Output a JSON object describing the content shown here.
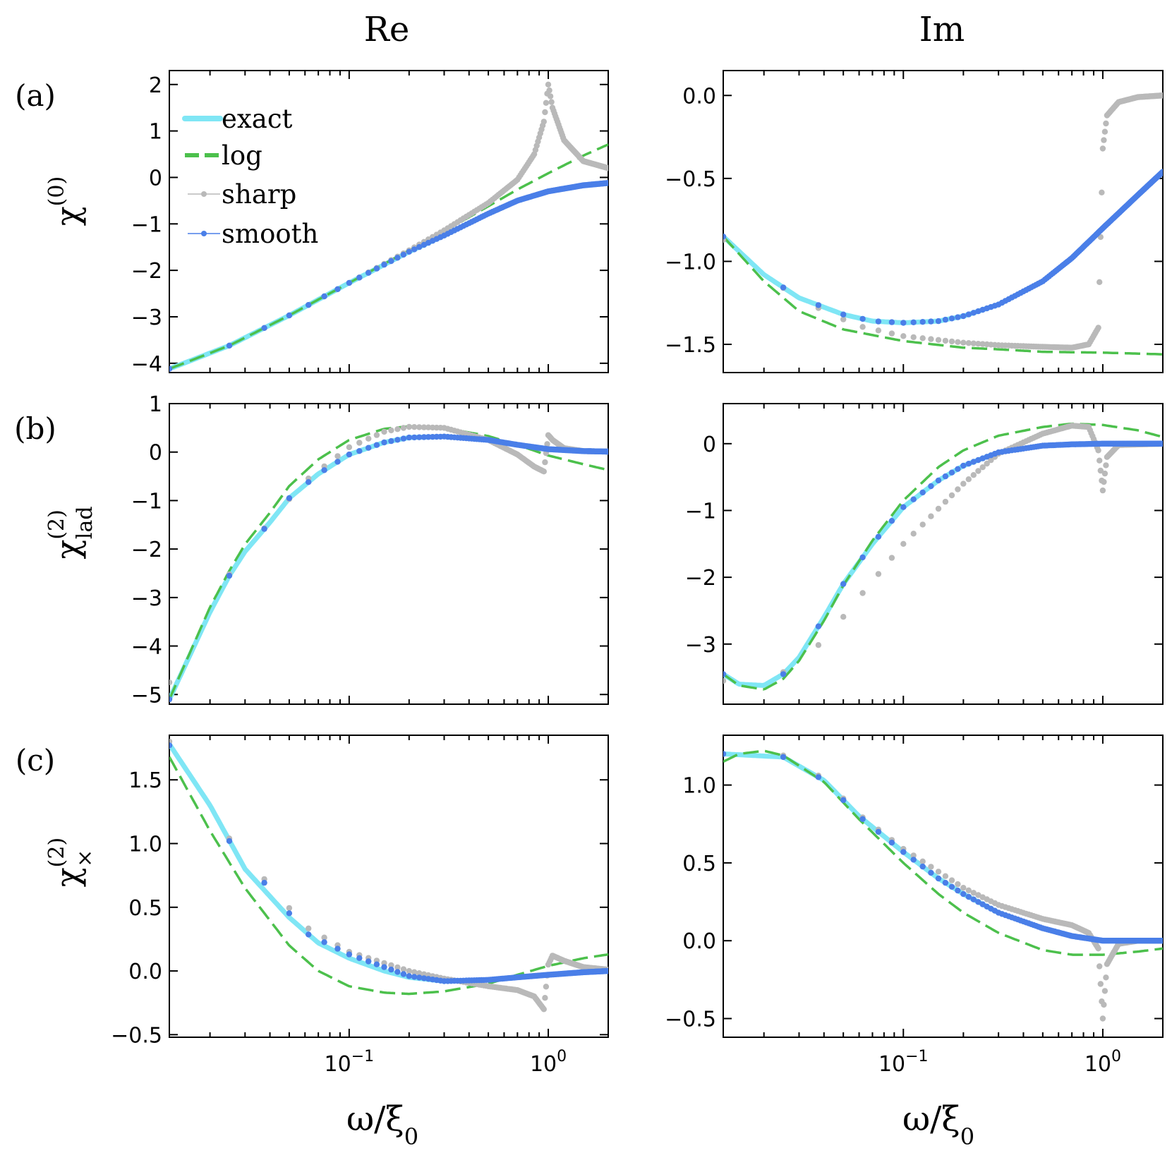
{
  "columns": [
    "Re",
    "Im"
  ],
  "row_labels": [
    "(a)",
    "(b)",
    "(c)"
  ],
  "ylabels": [
    {
      "base": "χ",
      "sup": "(0)",
      "sub": ""
    },
    {
      "base": "χ",
      "sup": "(2)",
      "sub": "lad"
    },
    {
      "base": "χ",
      "sup": "(2)",
      "sub": "×"
    }
  ],
  "xlabel": {
    "main": "ω/ξ",
    "sub": "0"
  },
  "legend": [
    "exact",
    "log",
    "sharp",
    "smooth"
  ],
  "colors": {
    "exact": "#7fe6f5",
    "log": "#4cc04c",
    "sharp": "#b9b9b9",
    "smooth": "#4a7fe8"
  },
  "chart_data": [
    {
      "id": "a-re",
      "type": "line",
      "x_scale": "log",
      "xlim": [
        0.0125,
        2.0
      ],
      "ylim": [
        -4.2,
        2.3
      ],
      "yticks": [
        -4,
        -3,
        -2,
        -1,
        0,
        1,
        2
      ],
      "ytick_labels": [
        "−4",
        "−3",
        "−2",
        "−1",
        "0",
        "1",
        "2"
      ],
      "xticks": [
        0.1,
        1.0
      ],
      "xtick_labels": [
        "10^-1",
        "10^0"
      ],
      "series": [
        {
          "name": "exact",
          "x": [
            0.0125,
            0.025,
            0.05,
            0.1,
            0.2,
            0.3,
            0.5,
            0.7,
            1.0,
            1.5,
            2.0
          ],
          "y": [
            -4.12,
            -3.62,
            -2.97,
            -2.27,
            -1.6,
            -1.25,
            -0.78,
            -0.5,
            -0.3,
            -0.17,
            -0.12
          ]
        },
        {
          "name": "log",
          "x": [
            0.0125,
            0.025,
            0.05,
            0.1,
            0.2,
            0.3,
            0.5,
            0.7,
            1.0,
            1.5,
            2.0
          ],
          "y": [
            -4.12,
            -3.62,
            -2.97,
            -2.27,
            -1.57,
            -1.16,
            -0.62,
            -0.26,
            0.09,
            0.47,
            0.71
          ]
        },
        {
          "name": "sharp",
          "x": [
            0.0125,
            0.025,
            0.05,
            0.1,
            0.2,
            0.3,
            0.5,
            0.7,
            0.85,
            0.95,
            1.0,
            1.05,
            1.2,
            1.5,
            2.0
          ],
          "y": [
            -4.12,
            -3.62,
            -2.97,
            -2.27,
            -1.57,
            -1.14,
            -0.55,
            -0.05,
            0.5,
            1.2,
            2.0,
            1.5,
            0.8,
            0.35,
            0.2
          ]
        },
        {
          "name": "smooth",
          "x": [
            0.0125,
            0.025,
            0.05,
            0.1,
            0.2,
            0.3,
            0.5,
            0.7,
            1.0,
            1.5,
            2.0
          ],
          "y": [
            -4.12,
            -3.62,
            -2.97,
            -2.27,
            -1.6,
            -1.25,
            -0.78,
            -0.5,
            -0.3,
            -0.17,
            -0.12
          ]
        }
      ]
    },
    {
      "id": "a-im",
      "type": "line",
      "x_scale": "log",
      "xlim": [
        0.0125,
        2.0
      ],
      "ylim": [
        -1.67,
        0.15
      ],
      "yticks": [
        -1.5,
        -1.0,
        -0.5,
        0.0
      ],
      "ytick_labels": [
        "−1.5",
        "−1.0",
        "−0.5",
        "0.0"
      ],
      "xticks": [
        0.1,
        1.0
      ],
      "xtick_labels": [
        "10^-1",
        "10^0"
      ],
      "series": [
        {
          "name": "exact",
          "x": [
            0.0125,
            0.02,
            0.03,
            0.05,
            0.07,
            0.1,
            0.15,
            0.2,
            0.3,
            0.5,
            0.7,
            1.0,
            1.5,
            2.0
          ],
          "y": [
            -0.85,
            -1.08,
            -1.22,
            -1.32,
            -1.36,
            -1.37,
            -1.36,
            -1.33,
            -1.26,
            -1.12,
            -0.98,
            -0.8,
            -0.6,
            -0.46
          ]
        },
        {
          "name": "log",
          "x": [
            0.0125,
            0.02,
            0.03,
            0.05,
            0.1,
            0.2,
            0.3,
            0.5,
            1.0,
            2.0
          ],
          "y": [
            -0.85,
            -1.12,
            -1.3,
            -1.41,
            -1.48,
            -1.52,
            -1.53,
            -1.545,
            -1.55,
            -1.56
          ]
        },
        {
          "name": "sharp",
          "x": [
            0.0125,
            0.025,
            0.04,
            0.06,
            0.1,
            0.2,
            0.3,
            0.5,
            0.7,
            0.85,
            0.95,
            1.0,
            1.05,
            1.2,
            1.5,
            2.0
          ],
          "y": [
            -0.87,
            -1.16,
            -1.3,
            -1.39,
            -1.45,
            -1.49,
            -1.505,
            -1.515,
            -1.52,
            -1.5,
            -1.4,
            -0.32,
            -0.12,
            -0.04,
            -0.01,
            0.0
          ]
        },
        {
          "name": "smooth",
          "x": [
            0.0125,
            0.02,
            0.03,
            0.05,
            0.07,
            0.1,
            0.15,
            0.2,
            0.3,
            0.5,
            0.7,
            1.0,
            1.5,
            2.0
          ],
          "y": [
            -0.85,
            -1.08,
            -1.22,
            -1.32,
            -1.36,
            -1.37,
            -1.36,
            -1.33,
            -1.26,
            -1.12,
            -0.98,
            -0.8,
            -0.6,
            -0.46
          ]
        }
      ]
    },
    {
      "id": "b-re",
      "type": "line",
      "x_scale": "log",
      "xlim": [
        0.0125,
        2.0
      ],
      "ylim": [
        -5.2,
        1.0
      ],
      "yticks": [
        -5,
        -4,
        -3,
        -2,
        -1,
        0,
        1
      ],
      "ytick_labels": [
        "−5",
        "−4",
        "−3",
        "−2",
        "−1",
        "0",
        "1"
      ],
      "xticks": [
        0.1,
        1.0
      ],
      "xtick_labels": [
        "10^-1",
        "10^0"
      ],
      "series": [
        {
          "name": "exact",
          "x": [
            0.0125,
            0.02,
            0.025,
            0.03,
            0.04,
            0.05,
            0.07,
            0.1,
            0.15,
            0.2,
            0.3,
            0.5,
            0.7,
            1.0,
            1.5,
            2.0
          ],
          "y": [
            -5.1,
            -3.3,
            -2.55,
            -2.05,
            -1.45,
            -0.95,
            -0.45,
            -0.05,
            0.2,
            0.3,
            0.32,
            0.25,
            0.15,
            0.06,
            0.02,
            0.01
          ]
        },
        {
          "name": "log",
          "x": [
            0.0125,
            0.02,
            0.025,
            0.03,
            0.04,
            0.05,
            0.07,
            0.1,
            0.15,
            0.2,
            0.3,
            0.5,
            0.7,
            1.0,
            1.5,
            2.0
          ],
          "y": [
            -5.1,
            -3.2,
            -2.45,
            -1.9,
            -1.25,
            -0.7,
            -0.15,
            0.25,
            0.48,
            0.53,
            0.5,
            0.33,
            0.15,
            -0.07,
            -0.25,
            -0.37
          ]
        },
        {
          "name": "sharp",
          "x": [
            0.0125,
            0.025,
            0.04,
            0.06,
            0.1,
            0.15,
            0.2,
            0.3,
            0.5,
            0.7,
            0.85,
            0.95,
            1.0,
            1.05,
            1.2,
            1.5,
            2.0
          ],
          "y": [
            -4.75,
            -2.52,
            -1.42,
            -0.6,
            0.1,
            0.42,
            0.52,
            0.5,
            0.25,
            -0.05,
            -0.3,
            -0.4,
            0.35,
            0.25,
            0.08,
            0.02,
            0.01
          ]
        },
        {
          "name": "smooth",
          "x": [
            0.0125,
            0.02,
            0.025,
            0.03,
            0.04,
            0.05,
            0.07,
            0.1,
            0.15,
            0.2,
            0.3,
            0.5,
            0.7,
            1.0,
            1.5,
            2.0
          ],
          "y": [
            -5.1,
            -3.3,
            -2.55,
            -2.05,
            -1.45,
            -0.95,
            -0.45,
            -0.05,
            0.2,
            0.3,
            0.32,
            0.25,
            0.15,
            0.06,
            0.02,
            0.01
          ]
        }
      ]
    },
    {
      "id": "b-im",
      "type": "line",
      "x_scale": "log",
      "xlim": [
        0.0125,
        2.0
      ],
      "ylim": [
        -3.9,
        0.6
      ],
      "yticks": [
        -3,
        -2,
        -1,
        0
      ],
      "ytick_labels": [
        "−3",
        "−2",
        "−1",
        "0"
      ],
      "xticks": [
        0.1,
        1.0
      ],
      "xtick_labels": [
        "10^-1",
        "10^0"
      ],
      "series": [
        {
          "name": "exact",
          "x": [
            0.0125,
            0.015,
            0.02,
            0.025,
            0.03,
            0.04,
            0.05,
            0.07,
            0.1,
            0.15,
            0.2,
            0.3,
            0.5,
            0.7,
            1.0,
            2.0
          ],
          "y": [
            -3.45,
            -3.6,
            -3.62,
            -3.45,
            -3.2,
            -2.6,
            -2.1,
            -1.5,
            -0.95,
            -0.55,
            -0.33,
            -0.13,
            -0.03,
            -0.01,
            0.0,
            0.0
          ]
        },
        {
          "name": "log",
          "x": [
            0.0125,
            0.015,
            0.02,
            0.025,
            0.03,
            0.04,
            0.05,
            0.07,
            0.1,
            0.15,
            0.2,
            0.3,
            0.5,
            0.7,
            1.0,
            1.5,
            2.0
          ],
          "y": [
            -3.45,
            -3.62,
            -3.68,
            -3.52,
            -3.25,
            -2.65,
            -2.12,
            -1.45,
            -0.85,
            -0.35,
            -0.1,
            0.12,
            0.25,
            0.3,
            0.28,
            0.2,
            0.1
          ]
        },
        {
          "name": "sharp",
          "x": [
            0.0125,
            0.025,
            0.04,
            0.06,
            0.1,
            0.2,
            0.3,
            0.5,
            0.7,
            0.85,
            0.95,
            1.0,
            1.05,
            1.2,
            2.0
          ],
          "y": [
            -3.55,
            -3.42,
            -2.95,
            -2.3,
            -1.5,
            -0.6,
            -0.15,
            0.15,
            0.27,
            0.25,
            -0.1,
            -0.7,
            -0.2,
            -0.02,
            0.0
          ]
        },
        {
          "name": "smooth",
          "x": [
            0.0125,
            0.015,
            0.02,
            0.025,
            0.03,
            0.04,
            0.05,
            0.07,
            0.1,
            0.15,
            0.2,
            0.3,
            0.5,
            0.7,
            1.0,
            2.0
          ],
          "y": [
            -3.45,
            -3.6,
            -3.62,
            -3.45,
            -3.2,
            -2.6,
            -2.1,
            -1.5,
            -0.95,
            -0.55,
            -0.33,
            -0.13,
            -0.03,
            -0.01,
            0.0,
            0.0
          ]
        }
      ]
    },
    {
      "id": "c-re",
      "type": "line",
      "x_scale": "log",
      "xlim": [
        0.0125,
        2.0
      ],
      "ylim": [
        -0.52,
        1.85
      ],
      "yticks": [
        -0.5,
        0.0,
        0.5,
        1.0,
        1.5
      ],
      "ytick_labels": [
        "−0.5",
        "0.0",
        "0.5",
        "1.0",
        "1.5"
      ],
      "xticks": [
        0.1,
        1.0
      ],
      "xtick_labels": [
        "10^-1",
        "10^0"
      ],
      "series": [
        {
          "name": "exact",
          "x": [
            0.0125,
            0.02,
            0.03,
            0.05,
            0.07,
            0.1,
            0.15,
            0.2,
            0.3,
            0.5,
            0.7,
            1.0,
            1.5,
            2.0
          ],
          "y": [
            1.78,
            1.3,
            0.8,
            0.42,
            0.22,
            0.1,
            0.0,
            -0.05,
            -0.08,
            -0.07,
            -0.05,
            -0.03,
            -0.01,
            0.0
          ]
        },
        {
          "name": "log",
          "x": [
            0.0125,
            0.02,
            0.03,
            0.05,
            0.07,
            0.1,
            0.15,
            0.2,
            0.3,
            0.5,
            0.7,
            1.0,
            1.5,
            2.0
          ],
          "y": [
            1.68,
            1.1,
            0.65,
            0.2,
            0.0,
            -0.12,
            -0.17,
            -0.18,
            -0.16,
            -0.1,
            -0.03,
            0.04,
            0.1,
            0.13
          ]
        },
        {
          "name": "sharp",
          "x": [
            0.0125,
            0.025,
            0.04,
            0.06,
            0.1,
            0.2,
            0.3,
            0.5,
            0.7,
            0.85,
            0.95,
            1.0,
            1.05,
            1.2,
            1.5,
            2.0
          ],
          "y": [
            1.8,
            1.04,
            0.67,
            0.35,
            0.15,
            0.0,
            -0.06,
            -0.12,
            -0.15,
            -0.2,
            -0.3,
            0.05,
            0.12,
            0.08,
            0.03,
            0.01
          ]
        },
        {
          "name": "smooth",
          "x": [
            0.0125,
            0.025,
            0.04,
            0.06,
            0.1,
            0.2,
            0.3,
            0.5,
            0.7,
            1.0,
            1.5,
            2.0
          ],
          "y": [
            1.77,
            1.02,
            0.64,
            0.3,
            0.13,
            -0.04,
            -0.08,
            -0.07,
            -0.05,
            -0.03,
            -0.01,
            0.0
          ]
        }
      ]
    },
    {
      "id": "c-im",
      "type": "line",
      "x_scale": "log",
      "xlim": [
        0.0125,
        2.0
      ],
      "ylim": [
        -0.62,
        1.32
      ],
      "yticks": [
        -0.5,
        0.0,
        0.5,
        1.0
      ],
      "ytick_labels": [
        "−0.5",
        "0.0",
        "0.5",
        "1.0"
      ],
      "xticks": [
        0.1,
        1.0
      ],
      "xtick_labels": [
        "10^-1",
        "10^0"
      ],
      "series": [
        {
          "name": "exact",
          "x": [
            0.0125,
            0.025,
            0.04,
            0.06,
            0.1,
            0.15,
            0.2,
            0.3,
            0.5,
            0.7,
            1.0,
            2.0
          ],
          "y": [
            1.2,
            1.18,
            1.03,
            0.8,
            0.57,
            0.4,
            0.3,
            0.18,
            0.08,
            0.03,
            0.0,
            0.0
          ]
        },
        {
          "name": "log",
          "x": [
            0.0125,
            0.015,
            0.02,
            0.025,
            0.04,
            0.06,
            0.1,
            0.15,
            0.2,
            0.3,
            0.5,
            0.7,
            1.0,
            1.5,
            2.0
          ],
          "y": [
            1.15,
            1.2,
            1.22,
            1.19,
            1.02,
            0.78,
            0.5,
            0.3,
            0.18,
            0.05,
            -0.06,
            -0.09,
            -0.09,
            -0.07,
            -0.05
          ]
        },
        {
          "name": "sharp",
          "x": [
            0.0125,
            0.025,
            0.04,
            0.06,
            0.1,
            0.2,
            0.3,
            0.5,
            0.7,
            0.85,
            0.95,
            1.0,
            1.05,
            1.2,
            1.5,
            2.0
          ],
          "y": [
            1.2,
            1.19,
            1.04,
            0.81,
            0.59,
            0.34,
            0.23,
            0.14,
            0.1,
            0.05,
            -0.05,
            -0.5,
            -0.15,
            -0.02,
            0.0,
            0.0
          ]
        },
        {
          "name": "smooth",
          "x": [
            0.0125,
            0.025,
            0.04,
            0.06,
            0.1,
            0.15,
            0.2,
            0.3,
            0.5,
            0.7,
            1.0,
            2.0
          ],
          "y": [
            1.2,
            1.18,
            1.03,
            0.8,
            0.57,
            0.4,
            0.3,
            0.18,
            0.08,
            0.03,
            0.0,
            0.0
          ]
        }
      ]
    }
  ]
}
